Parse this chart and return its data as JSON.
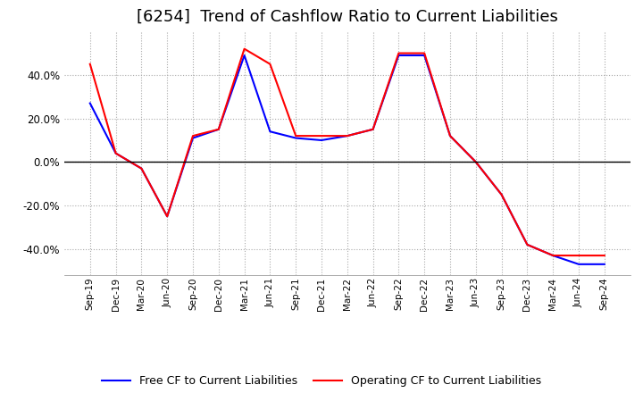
{
  "title": "[6254]  Trend of Cashflow Ratio to Current Liabilities",
  "x_labels": [
    "Sep-19",
    "Dec-19",
    "Mar-20",
    "Jun-20",
    "Sep-20",
    "Dec-20",
    "Mar-21",
    "Jun-21",
    "Sep-21",
    "Dec-21",
    "Mar-22",
    "Jun-22",
    "Sep-22",
    "Dec-22",
    "Mar-23",
    "Jun-23",
    "Sep-23",
    "Dec-23",
    "Mar-24",
    "Jun-24",
    "Sep-24"
  ],
  "operating_cf": [
    0.45,
    0.04,
    -0.03,
    -0.25,
    0.12,
    0.15,
    0.52,
    0.45,
    0.12,
    0.12,
    0.12,
    0.15,
    0.5,
    0.5,
    0.12,
    0.0,
    -0.15,
    -0.38,
    -0.43,
    -0.43,
    -0.43
  ],
  "free_cf": [
    0.27,
    0.04,
    -0.03,
    -0.25,
    0.11,
    0.15,
    0.49,
    0.14,
    0.11,
    0.1,
    0.12,
    0.15,
    0.49,
    0.49,
    0.12,
    0.0,
    -0.15,
    -0.38,
    -0.43,
    -0.47,
    -0.47
  ],
  "operating_color": "#ff0000",
  "free_color": "#0000ff",
  "ylim": [
    -0.52,
    0.6
  ],
  "yticks": [
    -0.4,
    -0.2,
    0.0,
    0.2,
    0.4
  ],
  "background_color": "#ffffff",
  "grid_color": "#aaaaaa",
  "title_fontsize": 13,
  "legend_operating": "Operating CF to Current Liabilities",
  "legend_free": "Free CF to Current Liabilities"
}
